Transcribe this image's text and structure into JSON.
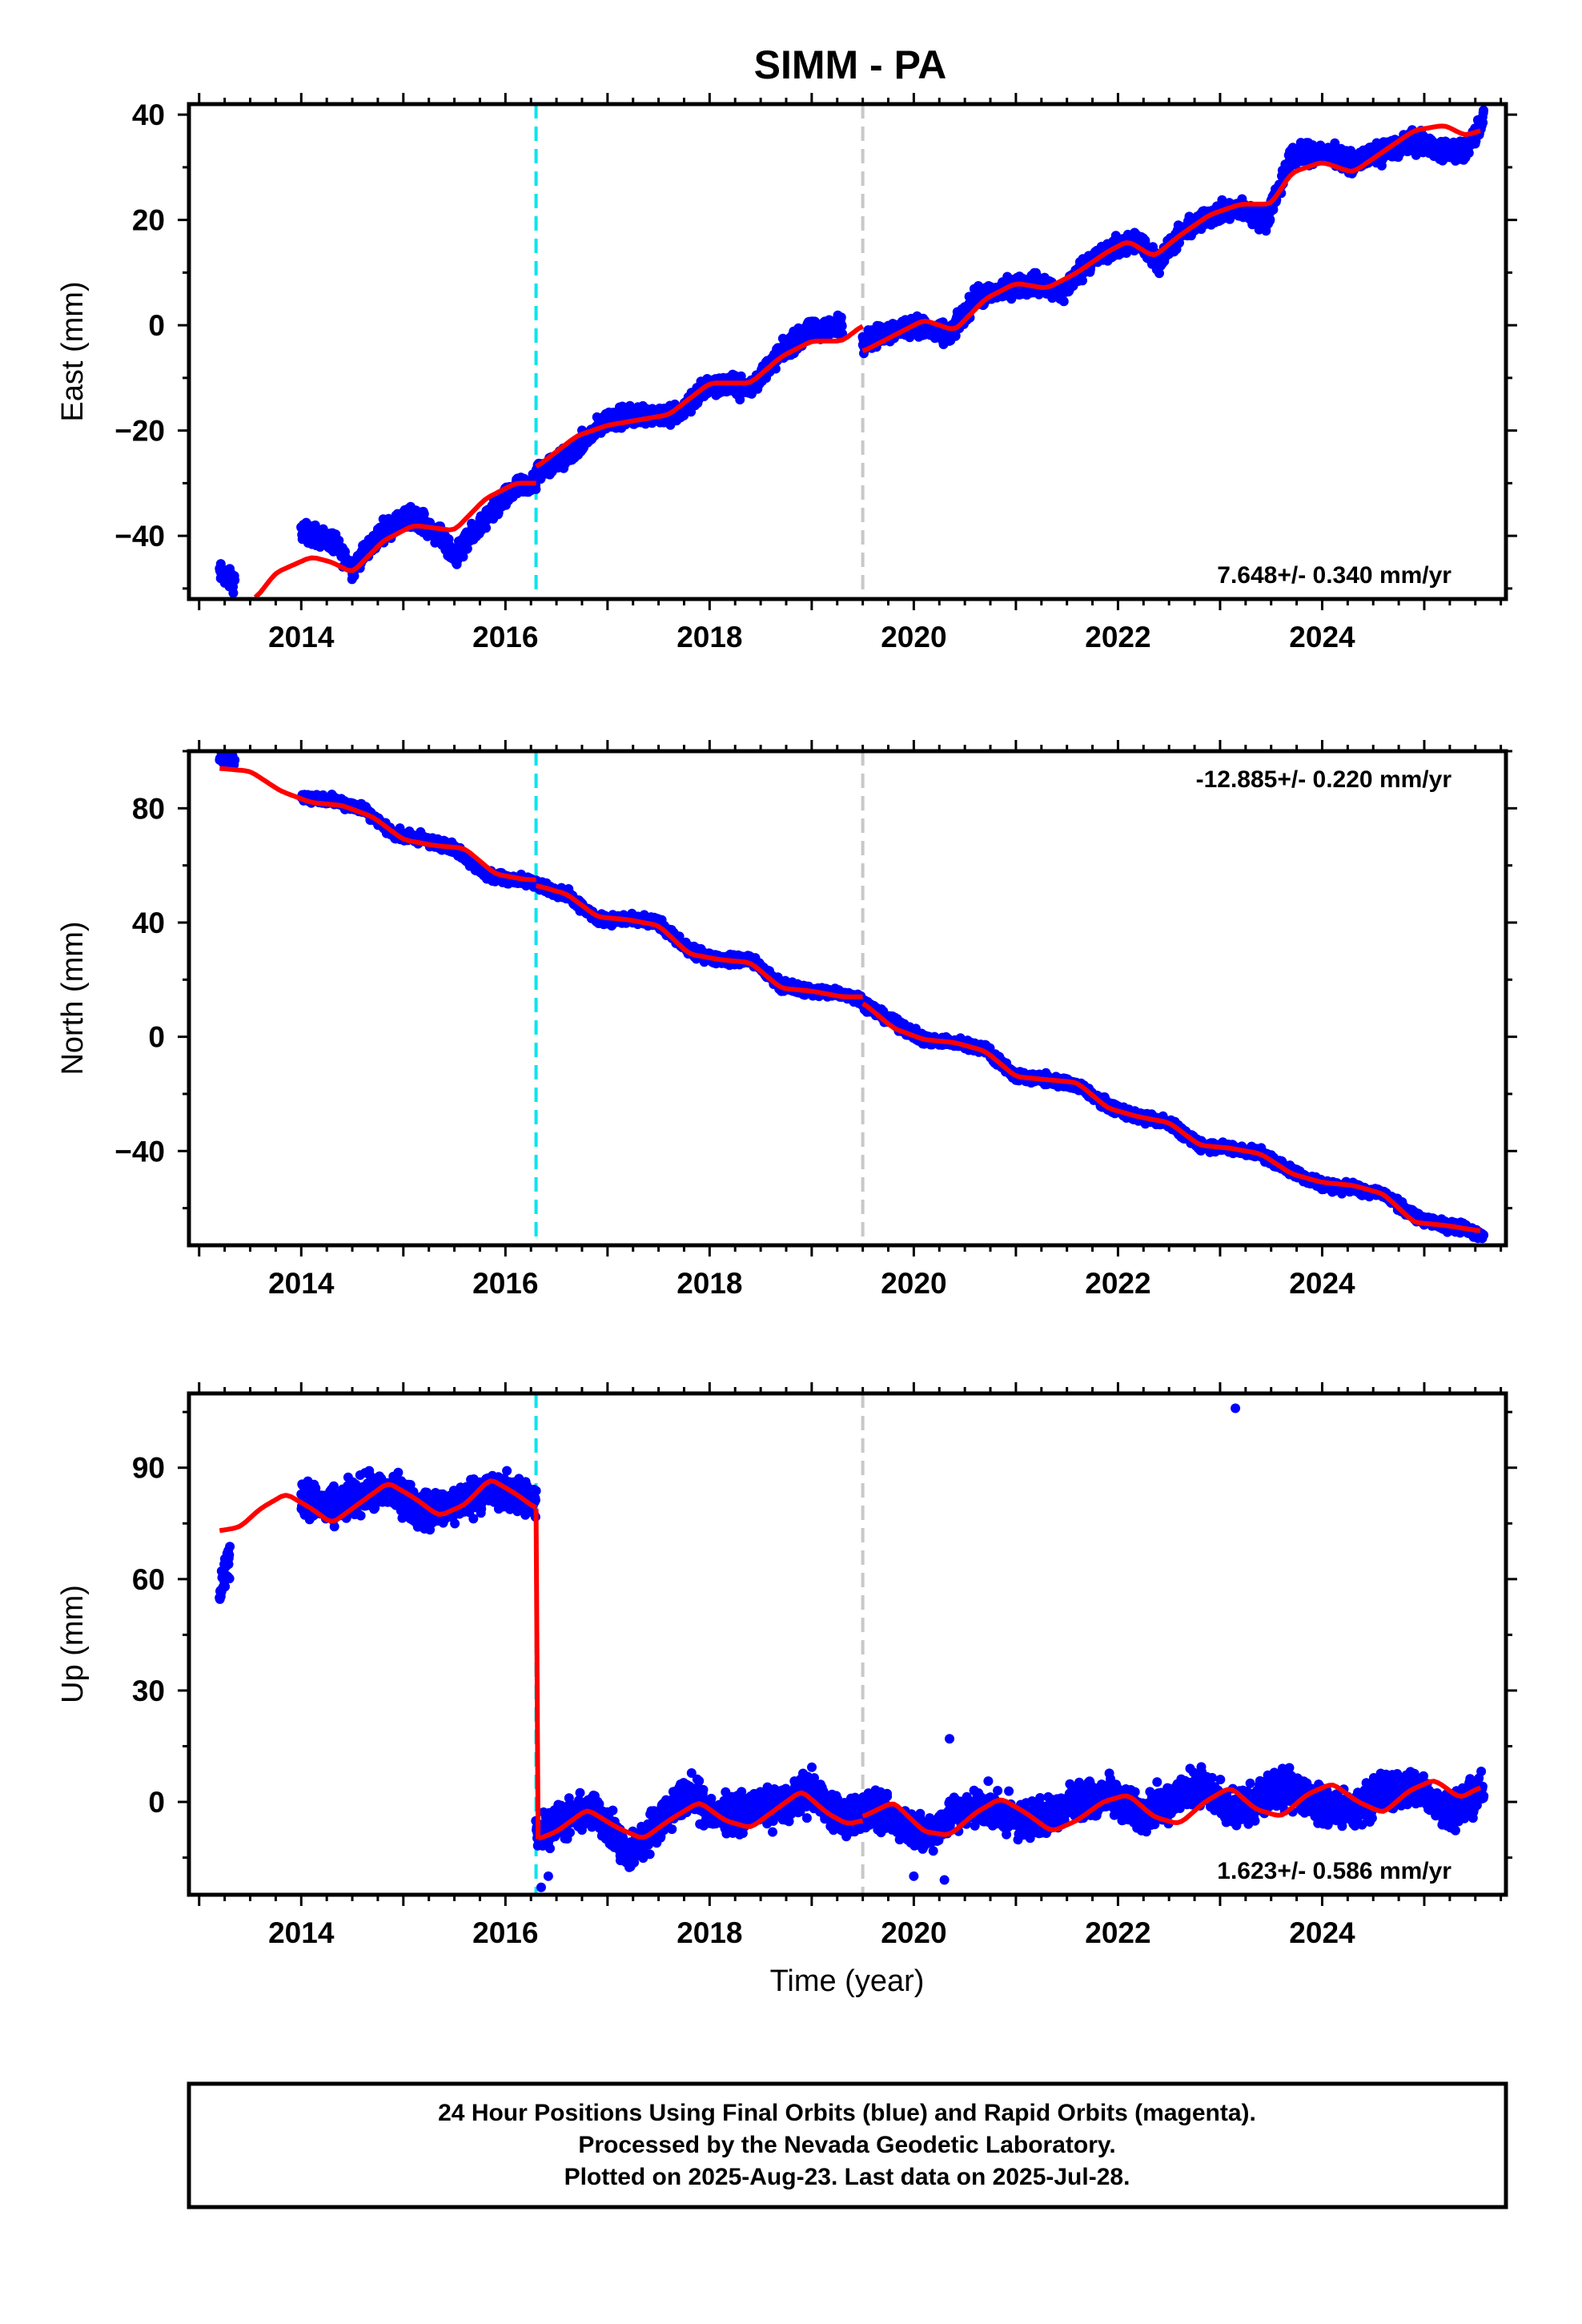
{
  "chart_data": [
    {
      "type": "scatter",
      "title": "SIMM - PA",
      "xlabel": "",
      "ylabel": "East (mm)",
      "xlim": [
        2012.9,
        2025.8
      ],
      "ylim": [
        -52,
        42
      ],
      "xticks": [
        2014,
        2016,
        2018,
        2020,
        2022,
        2024
      ],
      "yticks": [
        -40,
        -20,
        0,
        20,
        40
      ],
      "rate_label": "7.648+/- 0.340 mm/yr",
      "rate_label_position": "bottom-right",
      "grid": false,
      "vlines": [
        {
          "x": 2016.3,
          "color": "#00e5ee",
          "style": "dashed"
        },
        {
          "x": 2019.5,
          "color": "#c8c8c8",
          "style": "dashed"
        }
      ],
      "series": [
        {
          "color": "#0000ff",
          "marker": "dot",
          "segments": [
            {
              "x": [
                2013.2,
                2013.35
              ],
              "y": [
                -47,
                -49
              ]
            },
            {
              "x": [
                2014.0,
                2014.3,
                2014.5,
                2014.8,
                2015.1,
                2015.35,
                2015.5,
                2015.8,
                2016.1,
                2016.3
              ],
              "y": [
                -39,
                -41,
                -46,
                -39,
                -36,
                -40,
                -44,
                -37,
                -31,
                -30
              ]
            },
            {
              "x": [
                2016.3,
                2016.6,
                2017.0,
                2017.3,
                2017.7,
                2018.0,
                2018.4,
                2018.7,
                2019.0,
                2019.3
              ],
              "y": [
                -28,
                -25,
                -18,
                -17,
                -17,
                -11,
                -12,
                -5,
                -1,
                0
              ]
            },
            {
              "x": [
                2019.5,
                2019.8,
                2020.0,
                2020.35,
                2020.6,
                2020.9,
                2021.2,
                2021.45,
                2021.7,
                2022.0,
                2022.2,
                2022.4,
                2022.6,
                2022.9,
                2023.2,
                2023.45,
                2023.7,
                2024.0,
                2024.3,
                2024.6,
                2024.9,
                2025.2,
                2025.4,
                2025.58
              ],
              "y": [
                -3,
                -1,
                0,
                -2,
                5,
                7,
                8,
                6,
                12,
                15,
                16,
                12,
                17,
                21,
                22,
                20,
                32,
                33,
                31,
                33,
                35,
                33,
                33,
                39
              ]
            }
          ]
        },
        {
          "color": "#ff0000",
          "marker": "line",
          "segments": [
            {
              "x": [
                2013.55,
                2013.75,
                2014.1,
                2014.3,
                2014.5,
                2014.8,
                2015.1,
                2015.5,
                2015.8,
                2016.1,
                2016.3
              ],
              "y": [
                -52,
                -47,
                -44,
                -45,
                -47,
                -41,
                -38,
                -39,
                -33,
                -30,
                -30
              ]
            },
            {
              "x": [
                2016.3,
                2016.7,
                2017.0,
                2017.3,
                2017.6,
                2018.0,
                2018.4,
                2018.7,
                2019.0,
                2019.3,
                2019.5
              ],
              "y": [
                -27,
                -21,
                -19,
                -18,
                -17,
                -11,
                -11,
                -6,
                -3,
                -3,
                0
              ]
            },
            {
              "x": [
                2019.5,
                2019.8,
                2020.1,
                2020.4,
                2020.7,
                2021.0,
                2021.3,
                2021.6,
                2021.9,
                2022.1,
                2022.35,
                2022.6,
                2022.9,
                2023.2,
                2023.5,
                2023.7,
                2024.0,
                2024.3,
                2024.6,
                2024.9,
                2025.2,
                2025.4,
                2025.55
              ],
              "y": [
                -5,
                -2,
                1,
                -1,
                5,
                8,
                7,
                10,
                14,
                16,
                13,
                17,
                21,
                23,
                23,
                29,
                31,
                29,
                33,
                37,
                38,
                36,
                37
              ]
            }
          ]
        }
      ]
    },
    {
      "type": "scatter",
      "xlabel": "",
      "ylabel": "North (mm)",
      "xlim": [
        2012.9,
        2025.8
      ],
      "ylim": [
        -73,
        100
      ],
      "xticks": [
        2014,
        2016,
        2018,
        2020,
        2022,
        2024
      ],
      "yticks": [
        -40,
        0,
        40,
        80
      ],
      "rate_label": "-12.885+/- 0.220 mm/yr",
      "rate_label_position": "top-right",
      "grid": false,
      "vlines": [
        {
          "x": 2016.3,
          "color": "#00e5ee",
          "style": "dashed"
        },
        {
          "x": 2019.5,
          "color": "#c8c8c8",
          "style": "dashed"
        }
      ],
      "series": [
        {
          "color": "#0000ff",
          "marker": "dot",
          "segments": [
            {
              "x": [
                2013.2,
                2013.35
              ],
              "y": [
                98,
                96
              ]
            },
            {
              "x": [
                2014.0,
                2014.3,
                2014.6,
                2014.9,
                2015.2,
                2015.5,
                2015.8,
                2016.1,
                2016.3
              ],
              "y": [
                84,
                83,
                80,
                71,
                69,
                66,
                57,
                55,
                54
              ]
            },
            {
              "x": [
                2016.3,
                2016.6,
                2016.9,
                2017.2,
                2017.5,
                2017.8,
                2018.1,
                2018.4,
                2018.7,
                2019.0,
                2019.3,
                2019.5
              ],
              "y": [
                53,
                50,
                41,
                41,
                40,
                30,
                27,
                27,
                18,
                16,
                15,
                13
              ]
            },
            {
              "x": [
                2019.5,
                2019.8,
                2020.1,
                2020.4,
                2020.7,
                2021.0,
                2021.3,
                2021.6,
                2021.9,
                2022.2,
                2022.5,
                2022.8,
                2023.1,
                2023.4,
                2023.7,
                2024.0,
                2024.3,
                2024.6,
                2024.9,
                2025.2,
                2025.4,
                2025.58
              ],
              "y": [
                12,
                5,
                -1,
                -2,
                -4,
                -14,
                -15,
                -17,
                -24,
                -28,
                -30,
                -38,
                -39,
                -41,
                -47,
                -52,
                -53,
                -55,
                -63,
                -66,
                -67,
                -70
              ]
            }
          ]
        },
        {
          "color": "#ff0000",
          "marker": "line",
          "segments": [
            {
              "x": [
                2013.2,
                2013.5,
                2013.8,
                2014.1,
                2014.4,
                2014.7,
                2015.0,
                2015.3,
                2015.6,
                2015.9,
                2016.2,
                2016.3
              ],
              "y": [
                94,
                93,
                86,
                82,
                81,
                77,
                69,
                67,
                66,
                57,
                55,
                55
              ]
            },
            {
              "x": [
                2016.3,
                2016.6,
                2016.9,
                2017.2,
                2017.5,
                2017.8,
                2018.1,
                2018.4,
                2018.7,
                2019.0,
                2019.3,
                2019.5
              ],
              "y": [
                53,
                50,
                42,
                41,
                39,
                29,
                27,
                26,
                17,
                16,
                14,
                14
              ]
            },
            {
              "x": [
                2019.5,
                2019.8,
                2020.1,
                2020.4,
                2020.7,
                2021.0,
                2021.3,
                2021.6,
                2021.9,
                2022.2,
                2022.5,
                2022.8,
                2023.1,
                2023.4,
                2023.7,
                2024.0,
                2024.3,
                2024.6,
                2024.9,
                2025.2,
                2025.55
              ],
              "y": [
                12,
                3,
                -1,
                -2,
                -5,
                -14,
                -15,
                -16,
                -25,
                -28,
                -30,
                -38,
                -39,
                -41,
                -48,
                -51,
                -52,
                -55,
                -65,
                -66,
                -68
              ]
            }
          ]
        }
      ]
    },
    {
      "type": "scatter",
      "xlabel": "Time (year)",
      "ylabel": "Up (mm)",
      "xlim": [
        2012.9,
        2025.8
      ],
      "ylim": [
        -25,
        110
      ],
      "xticks": [
        2014,
        2016,
        2018,
        2020,
        2022,
        2024
      ],
      "yticks": [
        0,
        30,
        60,
        90
      ],
      "rate_label": "1.623+/- 0.586 mm/yr",
      "rate_label_position": "bottom-right",
      "grid": false,
      "vlines": [
        {
          "x": 2016.3,
          "color": "#00e5ee",
          "style": "dashed"
        },
        {
          "x": 2019.5,
          "color": "#c8c8c8",
          "style": "dashed"
        }
      ],
      "series": [
        {
          "color": "#0000ff",
          "marker": "dot",
          "segments": [
            {
              "x": [
                2013.2,
                2013.3
              ],
              "y": [
                57,
                66
              ]
            },
            {
              "x": [
                2014.0,
                2014.3,
                2014.6,
                2014.9,
                2015.2,
                2015.5,
                2015.8,
                2016.1,
                2016.3
              ],
              "y": [
                82,
                79,
                83,
                84,
                78,
                80,
                84,
                83,
                80
              ]
            },
            {
              "x": [
                2016.3,
                2016.6,
                2016.9,
                2017.2,
                2017.5,
                2017.8,
                2018.1,
                2018.4,
                2018.7,
                2019.0,
                2019.3,
                2019.5
              ],
              "y": [
                -8,
                -5,
                -2,
                -15,
                -5,
                2,
                -4,
                -2,
                -1,
                3,
                -5,
                -3
              ]
            },
            {
              "x": [
                2019.5,
                2019.8,
                2020.1,
                2020.4,
                2020.7,
                2021.0,
                2021.3,
                2021.6,
                2021.9,
                2022.2,
                2022.5,
                2022.8,
                2023.1,
                2023.4,
                2023.7,
                2024.0,
                2024.3,
                2024.6,
                2024.9,
                2025.2,
                2025.4,
                2025.58
              ],
              "y": [
                -2,
                -4,
                -9,
                -3,
                -1,
                -5,
                -4,
                1,
                2,
                -3,
                0,
                5,
                -3,
                1,
                4,
                -1,
                -3,
                3,
                4,
                -2,
                0,
                3
              ]
            },
            {
              "x": [
                2016.35,
                2016.42,
                2020.0,
                2020.3,
                2020.35,
                2023.15
              ],
              "y": [
                -23,
                -20,
                -20,
                -21,
                17,
                106
              ]
            }
          ]
        },
        {
          "color": "#ff0000",
          "marker": "line",
          "segments": [
            {
              "x": [
                2013.2,
                2013.4,
                2013.6,
                2013.85,
                2014.1,
                2014.3,
                2014.55,
                2014.85,
                2015.1,
                2015.35,
                2015.6,
                2015.85,
                2016.1,
                2016.3
              ],
              "y": [
                73,
                74,
                79,
                83,
                79,
                75,
                80,
                86,
                82,
                77,
                80,
                87,
                83,
                79
              ]
            },
            {
              "x": [
                2016.3,
                2016.32
              ],
              "y": [
                79,
                -10
              ]
            },
            {
              "x": [
                2016.32,
                2016.5,
                2016.8,
                2017.1,
                2017.35,
                2017.6,
                2017.9,
                2018.15,
                2018.4,
                2018.65,
                2018.9,
                2019.15,
                2019.35,
                2019.5
              ],
              "y": [
                -10,
                -8,
                -2,
                -7,
                -10,
                -5,
                0,
                -5,
                -7,
                -2,
                3,
                -3,
                -6,
                -5
              ]
            },
            {
              "x": [
                2019.5,
                2019.8,
                2020.1,
                2020.35,
                2020.6,
                2020.85,
                2021.1,
                2021.35,
                2021.6,
                2021.85,
                2022.1,
                2022.35,
                2022.6,
                2022.85,
                2023.1,
                2023.35,
                2023.6,
                2023.85,
                2024.1,
                2024.35,
                2024.6,
                2024.85,
                2025.1,
                2025.35,
                2025.55
              ],
              "y": [
                -4,
                0,
                -8,
                -9,
                -3,
                1,
                -3,
                -8,
                -5,
                0,
                2,
                -4,
                -6,
                0,
                4,
                -2,
                -4,
                2,
                5,
                0,
                -3,
                3,
                6,
                1,
                4
              ]
            }
          ]
        }
      ]
    }
  ],
  "footer": {
    "lines": [
      "24 Hour Positions Using Final Orbits (blue) and Rapid Orbits (magenta).",
      "Processed by the Nevada Geodetic Laboratory.",
      "Plotted on 2025-Aug-23. Last data on 2025-Jul-28."
    ]
  }
}
